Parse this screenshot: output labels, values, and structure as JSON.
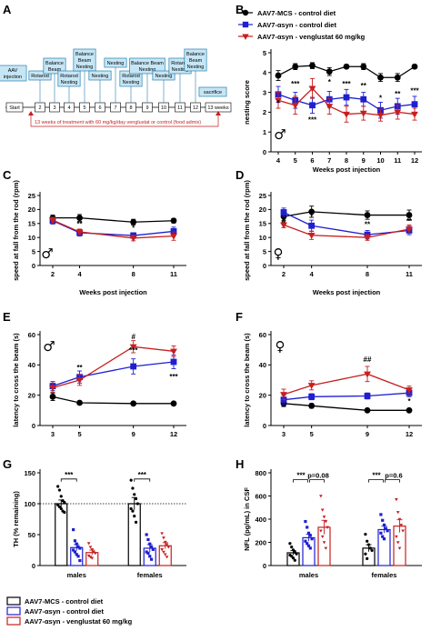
{
  "colors": {
    "mcs": "#000000",
    "asyn": "#1f1fd0",
    "veng": "#c81e1e"
  },
  "panel_labels": [
    "A",
    "B",
    "C",
    "D",
    "E",
    "F",
    "G",
    "H"
  ],
  "timeline": {
    "boxes": [
      {
        "label": "AAV\ninjection",
        "week": "inj"
      },
      {
        "label": "Rotarod",
        "week": 2
      },
      {
        "label": "Balance\nBeam",
        "week": 3
      },
      {
        "label": "Rotarod\nNesting",
        "week": 4
      },
      {
        "label": "Balance\nBeam\nNesting",
        "week": 5
      },
      {
        "label": "Nesting",
        "week": 6
      },
      {
        "label": "Nesting",
        "week": 7
      },
      {
        "label": "Rotarod\nNesting",
        "week": 8
      },
      {
        "label": "Balance Beam\nNesting",
        "week": 9
      },
      {
        "label": "Nesting",
        "week": 10
      },
      {
        "label": "Rotarod\nNesting",
        "week": 11
      },
      {
        "label": "Balance\nBeam\nNesting",
        "week": 12
      },
      {
        "label": "sacrifice",
        "week": 13
      }
    ],
    "axis_labels": [
      "Start",
      "2",
      "3",
      "4",
      "5",
      "6",
      "7",
      "8",
      "9",
      "10",
      "11",
      "12",
      "13 weeks"
    ],
    "treatment_text": "13 weeks of treatment with 60 mg/kg/day venglustat or control (food admix)"
  },
  "legend_top": [
    {
      "key": "mcs",
      "label": "AAV7-MCS - control diet"
    },
    {
      "key": "asyn",
      "label": "AAV7-αsyn - control diet"
    },
    {
      "key": "veng",
      "label": "AAV7-αsyn - venglustat 60 mg/kg"
    }
  ],
  "legend_bottom": [
    {
      "key": "mcs",
      "label": "AAV7-MCS - control diet"
    },
    {
      "key": "asyn",
      "label": "AAV7-αsyn - control diet"
    },
    {
      "key": "veng",
      "label": "AAV7-αsyn - venglustat 60 mg/kg"
    }
  ],
  "chart_data": [
    {
      "panel": "B",
      "type": "line",
      "sex": "♂",
      "xlabel": "Weeks post injection",
      "ylabel": "nesting score",
      "x": [
        4,
        5,
        6,
        7,
        8,
        9,
        10,
        11,
        12
      ],
      "ylim": [
        0,
        5
      ],
      "yticks": [
        0,
        1,
        2,
        3,
        4,
        5
      ],
      "series": [
        {
          "key": "mcs",
          "name": "AAV7-MCS - control diet",
          "values": [
            3.85,
            4.3,
            4.35,
            4.05,
            4.3,
            4.3,
            3.75,
            3.75,
            4.3
          ],
          "err": [
            0.25,
            0.15,
            0.15,
            0.2,
            0.1,
            0.15,
            0.2,
            0.2,
            0.1
          ]
        },
        {
          "key": "asyn",
          "name": "AAV7-αsyn - control diet",
          "values": [
            2.9,
            2.6,
            2.35,
            2.65,
            2.75,
            2.65,
            2.1,
            2.3,
            2.4
          ],
          "err": [
            0.4,
            0.4,
            0.4,
            0.4,
            0.4,
            0.35,
            0.4,
            0.4,
            0.4
          ]
        },
        {
          "key": "veng",
          "name": "AAV7-αsyn - venglustat 60 mg/kg",
          "values": [
            2.6,
            2.35,
            3.2,
            2.3,
            1.9,
            1.95,
            1.85,
            2.0,
            1.9
          ],
          "err": [
            0.4,
            0.45,
            0.5,
            0.4,
            0.4,
            0.35,
            0.3,
            0.35,
            0.3
          ]
        }
      ],
      "annotations": [
        {
          "x": 4,
          "y": 2.35,
          "text": "*"
        },
        {
          "x": 5,
          "y": 3.3,
          "text": "***"
        },
        {
          "x": 6,
          "y": 1.5,
          "text": "***"
        },
        {
          "x": 7,
          "y": 3.4,
          "text": "*"
        },
        {
          "x": 8,
          "y": 3.3,
          "text": "***"
        },
        {
          "x": 9,
          "y": 3.2,
          "text": "**"
        },
        {
          "x": 10,
          "y": 2.6,
          "text": "*"
        },
        {
          "x": 11,
          "y": 2.8,
          "text": "**"
        },
        {
          "x": 12,
          "y": 2.95,
          "text": "***"
        }
      ]
    },
    {
      "panel": "C",
      "type": "line",
      "sex": "♂",
      "xlabel": "Weeks post injection",
      "ylabel": "speed at fall from the rod (rpm)",
      "x": [
        2,
        4,
        8,
        11
      ],
      "ylim": [
        0,
        25
      ],
      "yticks": [
        0,
        5,
        10,
        15,
        20,
        25
      ],
      "series": [
        {
          "key": "mcs",
          "values": [
            17.0,
            17.0,
            15.5,
            16.0
          ],
          "err": [
            1.0,
            1.2,
            1.0,
            0.8
          ]
        },
        {
          "key": "asyn",
          "values": [
            16.0,
            11.7,
            10.7,
            12.2
          ],
          "err": [
            1.2,
            1.2,
            1.0,
            1.5
          ]
        },
        {
          "key": "veng",
          "values": [
            16.2,
            12.0,
            9.8,
            10.5
          ],
          "err": [
            1.0,
            1.0,
            1.0,
            1.5
          ]
        }
      ],
      "annotations": [
        {
          "x": 4,
          "y": 14.0,
          "text": "**"
        },
        {
          "x": 8,
          "y": 12.5,
          "text": "*"
        }
      ]
    },
    {
      "panel": "D",
      "type": "line",
      "sex": "♀",
      "xlabel": "Weeks post injection",
      "ylabel": "speed at fall from the rod (rpm)",
      "x": [
        2,
        4,
        8,
        11
      ],
      "ylim": [
        0,
        25
      ],
      "yticks": [
        0,
        5,
        10,
        15,
        20,
        25
      ],
      "series": [
        {
          "key": "mcs",
          "values": [
            17.5,
            19.2,
            18.0,
            18.0
          ],
          "err": [
            1.5,
            2.0,
            1.5,
            1.8
          ]
        },
        {
          "key": "asyn",
          "values": [
            19.0,
            14.2,
            11.0,
            12.5
          ],
          "err": [
            1.5,
            2.0,
            1.5,
            1.5
          ]
        },
        {
          "key": "veng",
          "values": [
            14.5,
            10.8,
            10.0,
            13.0
          ],
          "err": [
            1.0,
            1.5,
            1.0,
            1.5
          ]
        }
      ],
      "annotations": [
        {
          "x": 2,
          "y": 15.2,
          "text": "#"
        },
        {
          "x": 4,
          "y": 16.8,
          "text": "*"
        },
        {
          "x": 8,
          "y": 13.8,
          "text": "**"
        },
        {
          "x": 11,
          "y": 15.0,
          "text": "**"
        }
      ]
    },
    {
      "panel": "E",
      "type": "line",
      "sex": "♂",
      "xlabel": "",
      "ylabel": "latency to cross the beam (s)",
      "x": [
        3,
        5,
        9,
        12
      ],
      "ylim": [
        0,
        60
      ],
      "yticks": [
        0,
        20,
        40,
        60
      ],
      "series": [
        {
          "key": "mcs",
          "values": [
            19.0,
            15.0,
            14.5,
            14.5
          ],
          "err": [
            2.5,
            1.0,
            1.0,
            1.0
          ]
        },
        {
          "key": "asyn",
          "values": [
            26.0,
            32.0,
            39.0,
            42.0
          ],
          "err": [
            3.0,
            4.0,
            5.0,
            4.5
          ]
        },
        {
          "key": "veng",
          "values": [
            25.0,
            30.0,
            52.0,
            49.0
          ],
          "err": [
            3.0,
            3.5,
            4.0,
            3.5
          ]
        }
      ],
      "annotations": [
        {
          "x": 5,
          "y": 36.5,
          "text": "**"
        },
        {
          "x": 9,
          "y": 57.0,
          "text": "#"
        },
        {
          "x": 9,
          "y": 48.0,
          "text": "***"
        },
        {
          "x": 12,
          "y": 30.5,
          "text": "***"
        }
      ]
    },
    {
      "panel": "F",
      "type": "line",
      "sex": "♀",
      "xlabel": "",
      "ylabel": "latency to cross the beam (s)",
      "x": [
        3,
        5,
        9,
        12
      ],
      "ylim": [
        0,
        60
      ],
      "yticks": [
        0,
        20,
        40,
        60
      ],
      "series": [
        {
          "key": "mcs",
          "values": [
            14.5,
            13.0,
            10.0,
            10.0
          ],
          "err": [
            2.0,
            1.5,
            1.0,
            1.0
          ]
        },
        {
          "key": "asyn",
          "values": [
            17.0,
            19.0,
            19.5,
            21.5
          ],
          "err": [
            3.0,
            2.0,
            2.0,
            2.5
          ]
        },
        {
          "key": "veng",
          "values": [
            20.5,
            26.5,
            34.0,
            23.5
          ],
          "err": [
            3.5,
            3.0,
            5.0,
            2.5
          ]
        }
      ],
      "annotations": [
        {
          "x": 9,
          "y": 42.0,
          "text": "##"
        },
        {
          "x": 12,
          "y": 14.5,
          "text": "*"
        }
      ]
    },
    {
      "panel": "G",
      "type": "bar",
      "ylabel": "TH (% remaining)",
      "categories": [
        "males",
        "females"
      ],
      "ylim": [
        0,
        150
      ],
      "yticks": [
        0,
        50,
        100,
        150
      ],
      "reference_line": 100,
      "series": [
        {
          "key": "mcs",
          "values": [
            100,
            100
          ],
          "err": [
            6,
            10
          ]
        },
        {
          "key": "asyn",
          "values": [
            29,
            28
          ],
          "err": [
            5,
            6
          ]
        },
        {
          "key": "veng",
          "values": [
            21,
            32
          ],
          "err": [
            4,
            5
          ]
        }
      ],
      "points": {
        "males": {
          "mcs": [
            128,
            122,
            112,
            105,
            102,
            98,
            95,
            92,
            88,
            86
          ],
          "asyn": [
            58,
            40,
            35,
            30,
            28,
            25,
            22,
            18,
            15,
            8
          ],
          "veng": [
            36,
            30,
            26,
            22,
            20,
            16,
            14,
            12
          ]
        },
        "females": {
          "mcs": [
            138,
            125,
            115,
            108,
            100,
            92,
            88,
            80,
            70
          ],
          "asyn": [
            50,
            42,
            35,
            30,
            26,
            22,
            20,
            15,
            10
          ],
          "veng": [
            52,
            45,
            38,
            34,
            30,
            26,
            22,
            18,
            14
          ]
        }
      },
      "significance": [
        {
          "group": "males",
          "text": "***"
        },
        {
          "group": "females",
          "text": "***"
        }
      ]
    },
    {
      "panel": "H",
      "type": "bar",
      "ylabel": "NFL (pg/mL) in CSF",
      "categories": [
        "males",
        "females"
      ],
      "ylim": [
        0,
        800
      ],
      "yticks": [
        0,
        200,
        400,
        600,
        800
      ],
      "series": [
        {
          "key": "mcs",
          "values": [
            110,
            150
          ],
          "err": [
            20,
            30
          ]
        },
        {
          "key": "asyn",
          "values": [
            240,
            310
          ],
          "err": [
            30,
            30
          ]
        },
        {
          "key": "veng",
          "values": [
            330,
            340
          ],
          "err": [
            60,
            55
          ]
        }
      ],
      "points": {
        "males": {
          "mcs": [
            190,
            160,
            135,
            115,
            100,
            90,
            80,
            65,
            45
          ],
          "asyn": [
            380,
            330,
            280,
            260,
            230,
            210,
            190,
            170,
            150
          ],
          "veng": [
            600,
            480,
            420,
            380,
            330,
            300,
            250,
            200,
            150
          ]
        },
        "females": {
          "mcs": [
            270,
            210,
            180,
            150,
            130,
            100,
            60
          ],
          "asyn": [
            440,
            390,
            350,
            320,
            300,
            280,
            250,
            230
          ],
          "veng": [
            570,
            460,
            400,
            350,
            300,
            250,
            200,
            150
          ]
        }
      },
      "significance": [
        {
          "group": "males",
          "text": "***"
        },
        {
          "group": "males",
          "text": "p=0.08"
        },
        {
          "group": "females",
          "text": "***"
        },
        {
          "group": "females",
          "text": "p=0.6"
        }
      ]
    }
  ]
}
